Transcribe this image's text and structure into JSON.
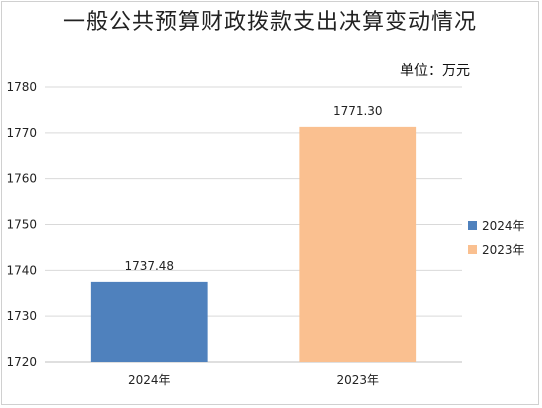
{
  "chart_data": {
    "type": "bar",
    "title": "一般公共预算财政拨款支出决算变动情况",
    "unit_label": "单位：万元",
    "categories": [
      "2024年",
      "2023年"
    ],
    "values": [
      1737.48,
      1771.3
    ],
    "value_labels": [
      "1737.48",
      "1771.30"
    ],
    "colors": [
      "#4f81bd",
      "#fac090"
    ],
    "legend": [
      "2024年",
      "2023年"
    ],
    "legend_placement": "right",
    "ylim": [
      1720,
      1780
    ],
    "yticks": [
      1720,
      1730,
      1740,
      1750,
      1760,
      1770,
      1780
    ],
    "grid": true,
    "xlabel": "",
    "ylabel": ""
  }
}
